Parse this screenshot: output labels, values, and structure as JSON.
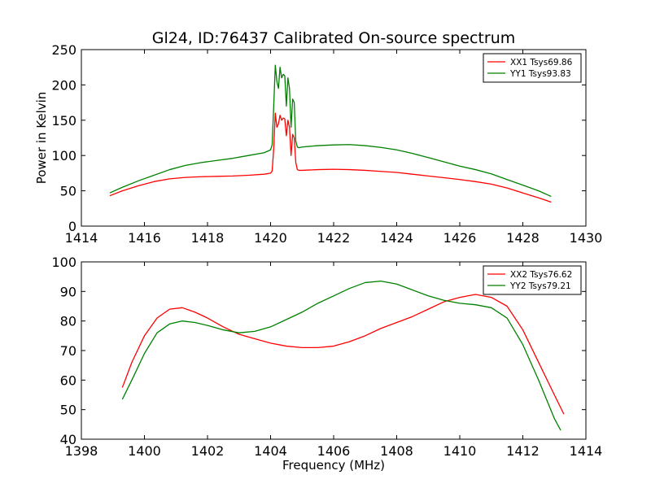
{
  "figure_title": "Gl24, ID:76437 Calibrated On-source spectrum",
  "chart_data": [
    {
      "type": "line",
      "title": "Gl24, ID:76437 Calibrated On-source spectrum",
      "xlabel": "",
      "ylabel": "Power in Kelvin",
      "xlim": [
        1414,
        1430
      ],
      "ylim": [
        0,
        250
      ],
      "xticks": [
        "1414",
        "1416",
        "1418",
        "1420",
        "1422",
        "1424",
        "1426",
        "1428",
        "1430"
      ],
      "yticks": [
        "0",
        "50",
        "100",
        "150",
        "200",
        "250"
      ],
      "grid": false,
      "legend_position": "top-right",
      "series": [
        {
          "name": "XX1 Tsys69.86",
          "color": "#ff0000",
          "x": [
            1414.9,
            1415.3,
            1415.8,
            1416.3,
            1416.8,
            1417.3,
            1417.8,
            1418.3,
            1418.8,
            1419.3,
            1419.8,
            1420.0,
            1420.05,
            1420.1,
            1420.15,
            1420.2,
            1420.25,
            1420.3,
            1420.35,
            1420.4,
            1420.45,
            1420.5,
            1420.55,
            1420.6,
            1420.65,
            1420.7,
            1420.75,
            1420.8,
            1420.85,
            1420.9,
            1421.0,
            1421.5,
            1422.0,
            1422.5,
            1423.0,
            1423.5,
            1424.0,
            1424.5,
            1425.0,
            1425.5,
            1426.0,
            1426.5,
            1427.0,
            1427.5,
            1428.0,
            1428.5,
            1428.9
          ],
          "y": [
            43,
            50,
            57,
            63,
            67,
            69,
            70,
            70.5,
            71,
            72,
            73.5,
            75,
            78,
            110,
            160,
            140,
            145,
            157,
            150,
            153,
            152,
            128,
            150,
            140,
            100,
            130,
            125,
            90,
            80,
            79,
            79,
            80,
            80.5,
            80,
            79,
            77.5,
            76,
            73.5,
            71,
            68.5,
            66,
            63,
            59.5,
            54,
            47,
            40,
            34
          ]
        },
        {
          "name": "YY1 Tsys93.83",
          "color": "#008000",
          "x": [
            1414.9,
            1415.3,
            1415.8,
            1416.3,
            1416.8,
            1417.3,
            1417.8,
            1418.3,
            1418.8,
            1419.3,
            1419.8,
            1420.0,
            1420.05,
            1420.1,
            1420.15,
            1420.2,
            1420.25,
            1420.3,
            1420.35,
            1420.4,
            1420.45,
            1420.5,
            1420.55,
            1420.6,
            1420.65,
            1420.7,
            1420.75,
            1420.8,
            1420.85,
            1420.9,
            1421.0,
            1421.5,
            1422.0,
            1422.5,
            1423.0,
            1423.5,
            1424.0,
            1424.5,
            1425.0,
            1425.5,
            1426.0,
            1426.5,
            1427.0,
            1427.5,
            1428.0,
            1428.5,
            1428.9
          ],
          "y": [
            47,
            55,
            64,
            72,
            80,
            86,
            90,
            93,
            96,
            100,
            104,
            108,
            115,
            170,
            228,
            205,
            195,
            225,
            210,
            215,
            213,
            170,
            210,
            195,
            140,
            180,
            175,
            120,
            112,
            111,
            112,
            114,
            115,
            115.5,
            114,
            111.5,
            108,
            103,
            97,
            91,
            85,
            80,
            74,
            66,
            58,
            50,
            42
          ]
        }
      ]
    },
    {
      "type": "line",
      "title": "",
      "xlabel": "Frequency (MHz)",
      "ylabel": "",
      "xlim": [
        1398,
        1414
      ],
      "ylim": [
        40,
        100
      ],
      "xticks": [
        "1398",
        "1400",
        "1402",
        "1404",
        "1406",
        "1408",
        "1410",
        "1412",
        "1414"
      ],
      "yticks": [
        "40",
        "50",
        "60",
        "70",
        "80",
        "90",
        "100"
      ],
      "grid": false,
      "legend_position": "top-right",
      "series": [
        {
          "name": "XX2 Tsys76.62",
          "color": "#ff0000",
          "x": [
            1399.3,
            1399.6,
            1400.0,
            1400.4,
            1400.8,
            1401.2,
            1401.6,
            1402.0,
            1402.5,
            1403.0,
            1403.5,
            1404.0,
            1404.5,
            1405.0,
            1405.5,
            1406.0,
            1406.5,
            1407.0,
            1407.5,
            1408.0,
            1408.5,
            1409.0,
            1409.5,
            1410.0,
            1410.5,
            1411.0,
            1411.5,
            1412.0,
            1412.5,
            1413.0,
            1413.3
          ],
          "y": [
            57.5,
            66,
            75,
            81,
            84,
            84.5,
            83,
            81,
            78,
            75.5,
            74,
            72.5,
            71.5,
            71,
            71,
            71.5,
            73,
            75,
            77.5,
            79.5,
            81.5,
            84,
            86.5,
            88,
            89,
            88,
            85,
            77,
            66,
            55,
            48.5
          ]
        },
        {
          "name": "YY2 Tsys79.21",
          "color": "#008000",
          "x": [
            1399.3,
            1399.6,
            1400.0,
            1400.4,
            1400.8,
            1401.2,
            1401.6,
            1402.0,
            1402.5,
            1403.0,
            1403.5,
            1404.0,
            1404.5,
            1405.0,
            1405.5,
            1406.0,
            1406.5,
            1407.0,
            1407.5,
            1408.0,
            1408.5,
            1409.0,
            1409.5,
            1410.0,
            1410.5,
            1411.0,
            1411.5,
            1412.0,
            1412.5,
            1413.0,
            1413.2
          ],
          "y": [
            53.5,
            60,
            69,
            76,
            79,
            80,
            79.5,
            78.5,
            77,
            76,
            76.5,
            78,
            80.5,
            83,
            86,
            88.5,
            91,
            93,
            93.5,
            92.5,
            90.5,
            88.5,
            87,
            86,
            85.5,
            84.5,
            81,
            72,
            60,
            47,
            43
          ]
        }
      ]
    }
  ]
}
